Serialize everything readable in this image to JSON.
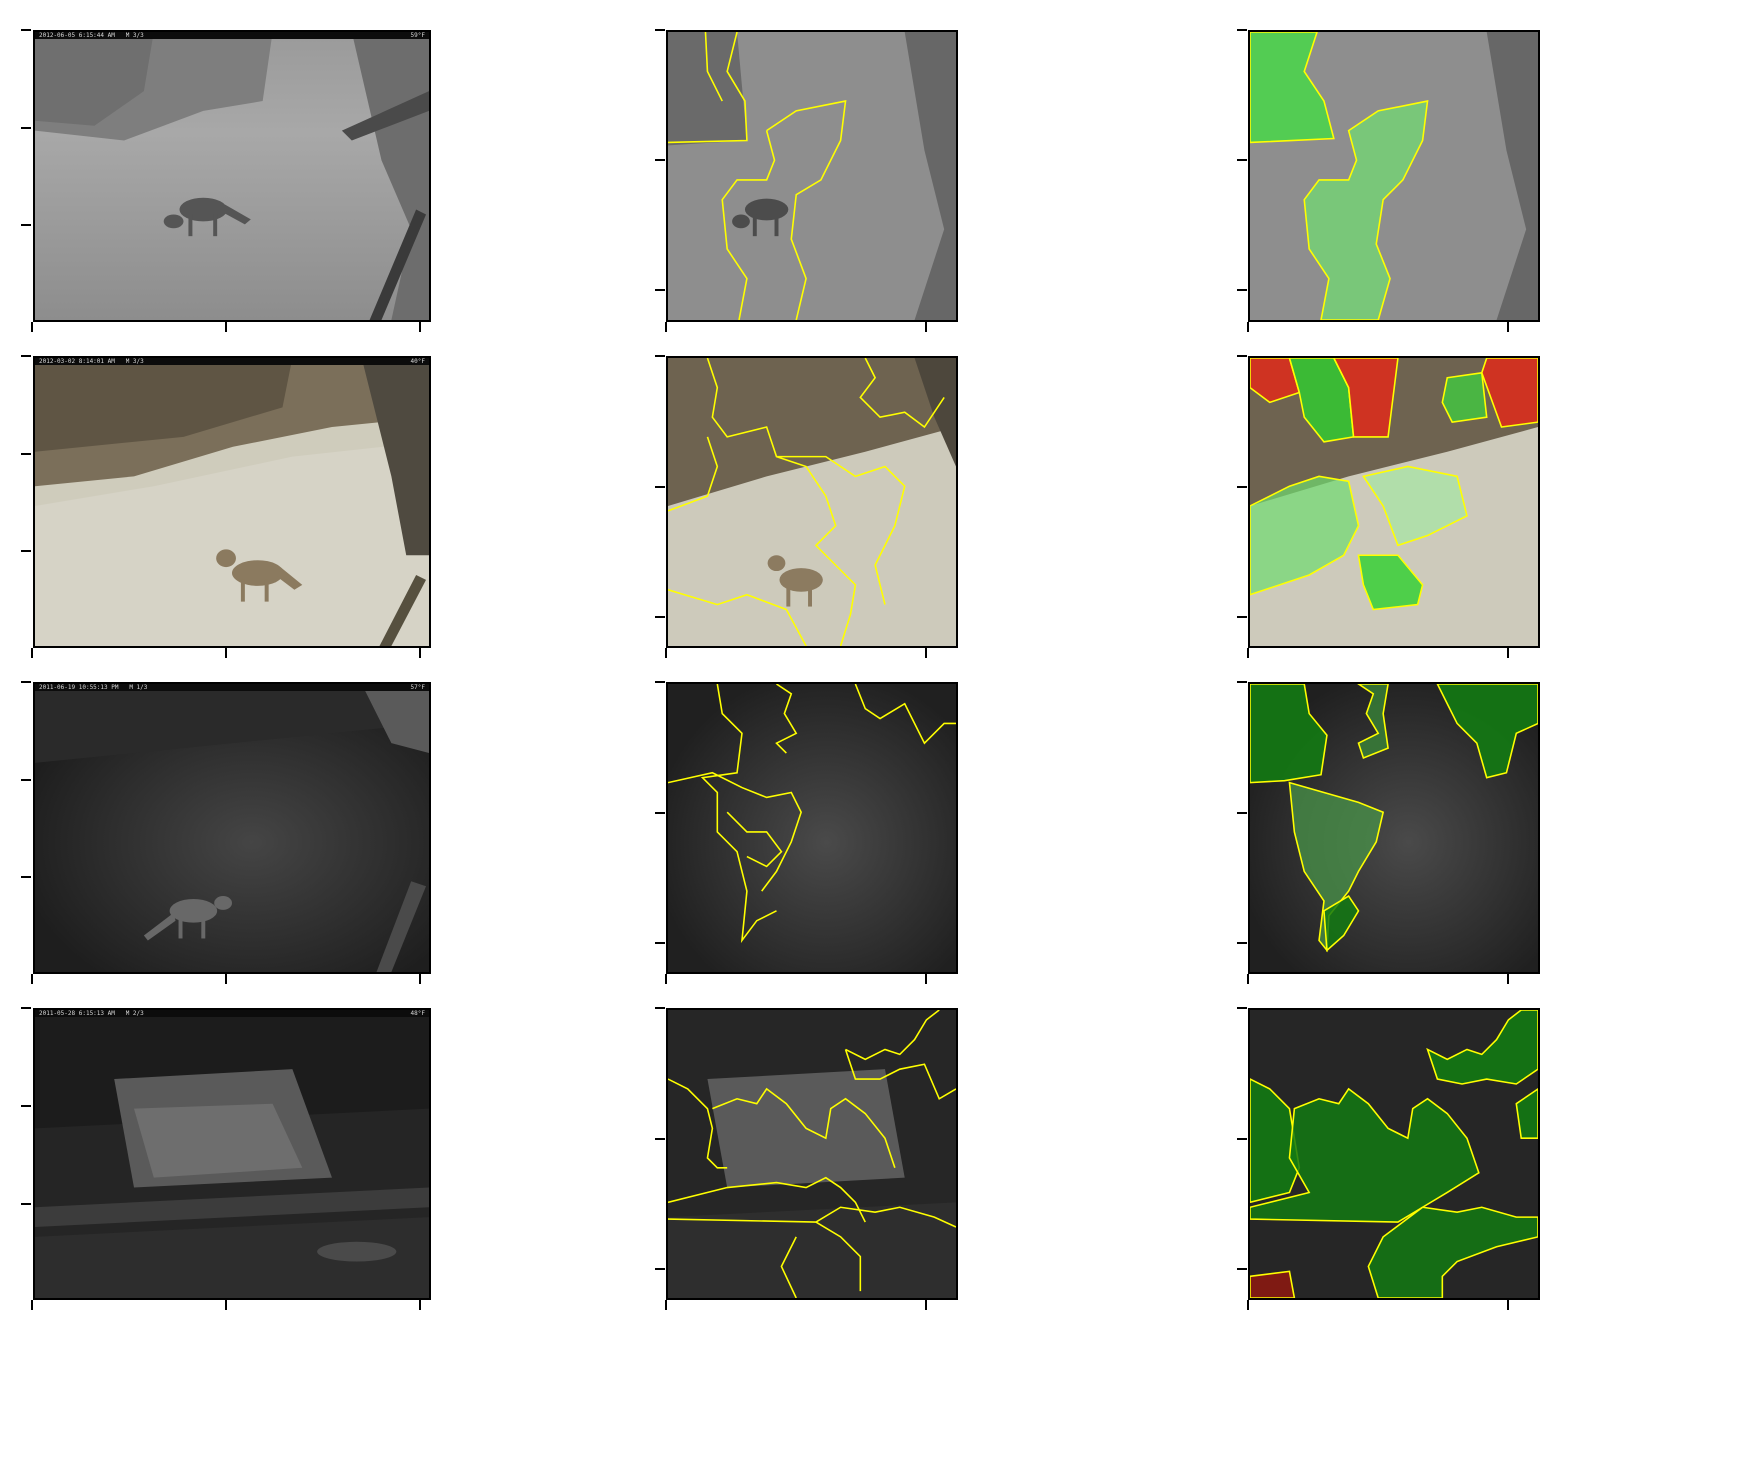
{
  "figure": {
    "rows": [
      {
        "original": {
          "timestamp": "2012-06-05 6:15:44 AM",
          "frame": "M 3/3",
          "temperature": "59°F",
          "scene": "day-grey"
        },
        "boundaries_color": "#ffff00",
        "explanation_colors": [
          "#3fe03f",
          "#70e070"
        ]
      },
      {
        "original": {
          "timestamp": "2012-03-02 8:14:01 AM",
          "frame": "M 3/3",
          "temperature": "40°F",
          "scene": "day-color"
        },
        "boundaries_color": "#ffff00",
        "explanation_colors": [
          "#2ed02e",
          "#e02a1a"
        ]
      },
      {
        "original": {
          "timestamp": "2011-06-19 10:55:13 PM",
          "frame": "M 1/3",
          "temperature": "57°F",
          "scene": "night"
        },
        "boundaries_color": "#ffff00",
        "explanation_colors": [
          "#137a13"
        ]
      },
      {
        "original": {
          "timestamp": "2011-05-28 6:15:13 AM",
          "frame": "M 2/3",
          "temperature": "48°F",
          "scene": "night"
        },
        "boundaries_color": "#ffff00",
        "explanation_colors": [
          "#137a13",
          "#8a1a12"
        ]
      }
    ]
  }
}
